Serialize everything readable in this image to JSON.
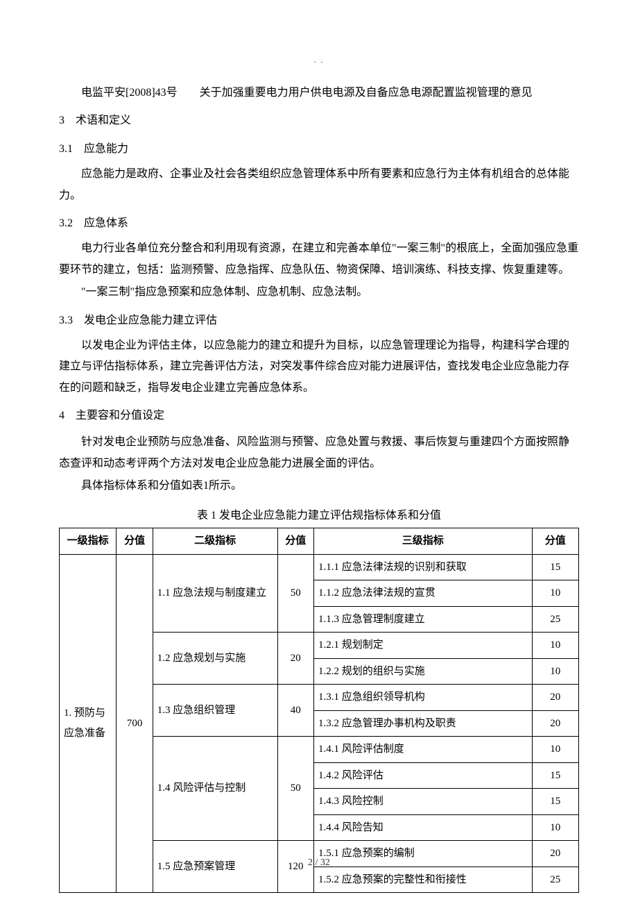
{
  "top_marker": "- -",
  "intro_para": "电监平安[2008]43号　　关于加强重要电力用户供电电源及自备应急电源配置监视管理的意见",
  "sections": {
    "s3": {
      "heading": "3　术语和定义",
      "s3_1": {
        "heading": "3.1　应急能力",
        "p1": "应急能力是政府、企事业及社会各类组织应急管理体系中所有要素和应急行为主体有机组合的总体能力。"
      },
      "s3_2": {
        "heading": "3.2　应急体系",
        "p1": "电力行业各单位充分整合和利用现有资源，在建立和完善本单位\"一案三制\"的根底上，全面加强应急重要环节的建立，包括：监测预警、应急指挥、应急队伍、物资保障、培训演练、科技支撑、恢复重建等。",
        "p2": "\"一案三制\"指应急预案和应急体制、应急机制、应急法制。"
      },
      "s3_3": {
        "heading": "3.3　发电企业应急能力建立评估",
        "p1": "以发电企业为评估主体，以应急能力的建立和提升为目标，以应急管理理论为指导，构建科学合理的建立与评估指标体系，建立完善评估方法，对突发事件综合应对能力进展评估，查找发电企业应急能力存在的问题和缺乏，指导发电企业建立完善应急体系。"
      }
    },
    "s4": {
      "heading": "4　主要容和分值设定",
      "p1": "针对发电企业预防与应急准备、风险监测与预警、应急处置与救援、事后恢复与重建四个方面按照静态查评和动态考评两个方法对发电企业应急能力进展全面的评估。",
      "p2": "具体指标体系和分值如表1所示。"
    }
  },
  "table": {
    "caption": "表 1  发电企业应急能力建立评估规指标体系和分值",
    "headers": {
      "l1": "一级指标",
      "score1": "分值",
      "l2": "二级指标",
      "score2": "分值",
      "l3": "三级指标",
      "score3": "分值"
    },
    "l1": {
      "label": "1. 预防与应急准备",
      "score": "700"
    },
    "l2": {
      "r1_1": {
        "label": "1.1  应急法规与制度建立",
        "score": "50"
      },
      "r1_2": {
        "label": "1.2  应急规划与实施",
        "score": "20"
      },
      "r1_3": {
        "label": "1.3  应急组织管理",
        "score": "40"
      },
      "r1_4": {
        "label": "1.4 风险评估与控制",
        "score": "50"
      },
      "r1_5": {
        "label": "1.5 应急预案管理",
        "score": "120"
      }
    },
    "l3": {
      "r1_1_1": {
        "label": "1.1.1  应急法律法规的识别和获取",
        "score": "15"
      },
      "r1_1_2": {
        "label": "1.1.2  应急法律法规的宣贯",
        "score": "10"
      },
      "r1_1_3": {
        "label": "1.1.3  应急管理制度建立",
        "score": "25"
      },
      "r1_2_1": {
        "label": "1.2.1  规划制定",
        "score": "10"
      },
      "r1_2_2": {
        "label": "1.2.2 规划的组织与实施",
        "score": "10"
      },
      "r1_3_1": {
        "label": "1.3.1  应急组织领导机构",
        "score": "20"
      },
      "r1_3_2": {
        "label": "1.3.2  应急管理办事机构及职责",
        "score": "20"
      },
      "r1_4_1": {
        "label": "1.4.1 风险评估制度",
        "score": "10"
      },
      "r1_4_2": {
        "label": "1.4.2 风险评估",
        "score": "15"
      },
      "r1_4_3": {
        "label": "1.4.3 风险控制",
        "score": "15"
      },
      "r1_4_4": {
        "label": "1.4.4 风险告知",
        "score": "10"
      },
      "r1_5_1": {
        "label": "1.5.1  应急预案的编制",
        "score": "20"
      },
      "r1_5_2": {
        "label": "1.5.2  应急预案的完整性和衔接性",
        "score": "25"
      }
    }
  },
  "footer": "2  /  32"
}
